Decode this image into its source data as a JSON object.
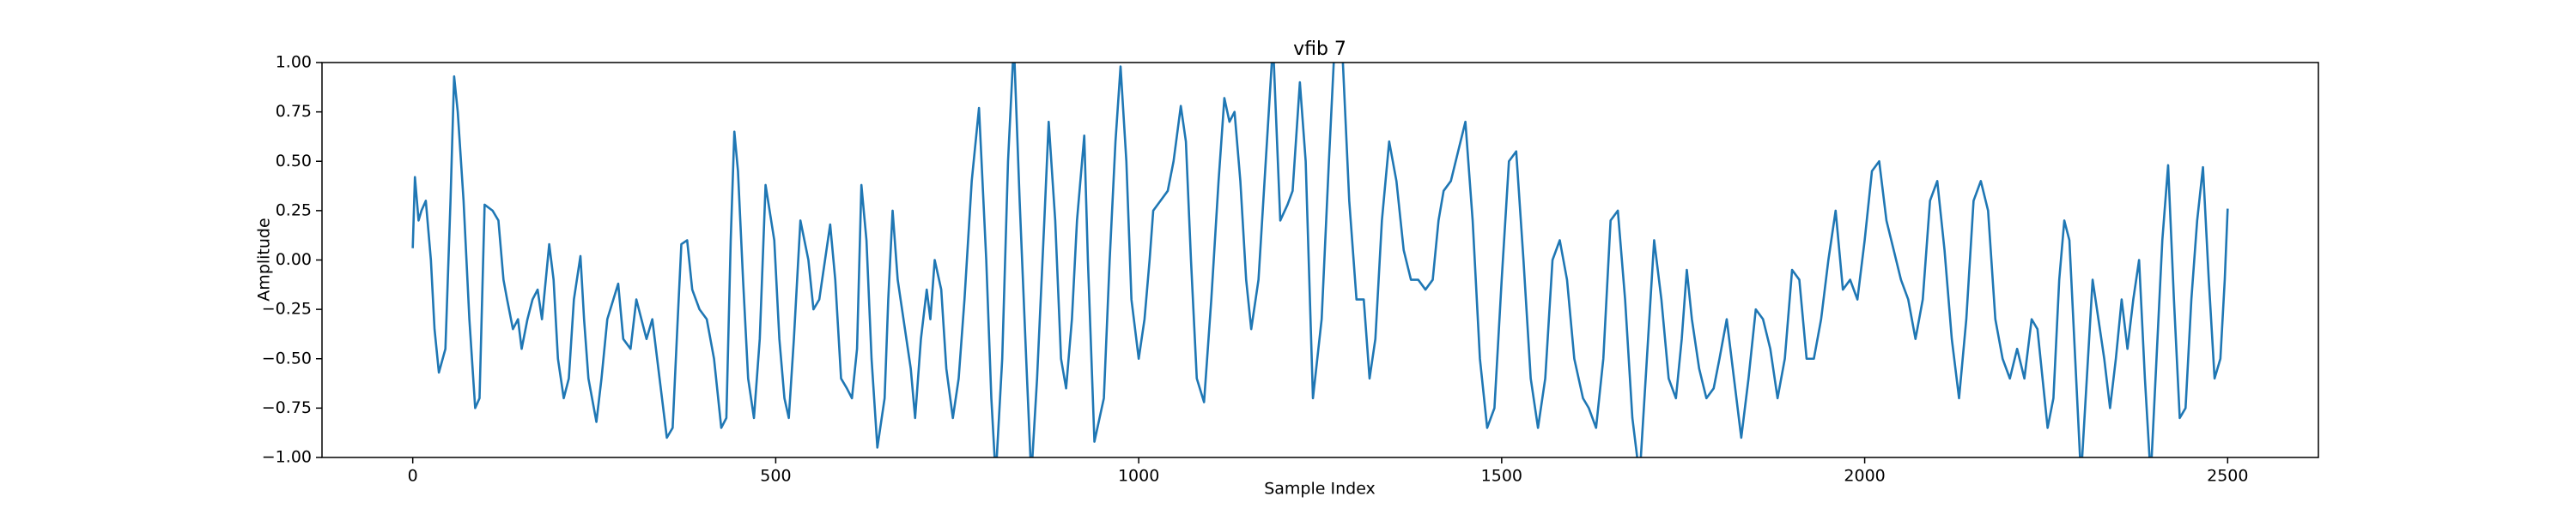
{
  "chart_data": {
    "type": "line",
    "title": "vfib 7",
    "x_label": "Sample Index",
    "y_label": "Amplitude",
    "xlim": [
      -125,
      2625
    ],
    "xticks": [
      0,
      500,
      1000,
      1500,
      2000,
      2500
    ],
    "ylim": [
      -1,
      1
    ],
    "yticks": [
      {
        "value": -1,
        "label": "−1.00"
      },
      {
        "value": -0.75,
        "label": "−0.75"
      },
      {
        "value": -0.5,
        "label": "−0.50"
      },
      {
        "value": -0.25,
        "label": "−0.25"
      },
      {
        "value": 0,
        "label": "0.00"
      },
      {
        "value": 0.25,
        "label": "0.25"
      },
      {
        "value": 0.5,
        "label": "0.50"
      },
      {
        "value": 0.75,
        "label": "0.75"
      },
      {
        "value": 1,
        "label": "1.00"
      }
    ],
    "grid": false,
    "x": [
      0,
      3,
      8,
      12,
      18,
      25,
      30,
      36,
      45,
      52,
      57,
      62,
      70,
      78,
      86,
      92,
      99,
      110,
      118,
      125,
      130,
      138,
      145,
      150,
      158,
      165,
      172,
      178,
      188,
      194,
      200,
      208,
      215,
      222,
      231,
      236,
      242,
      253,
      260,
      268,
      283,
      290,
      300,
      308,
      315,
      322,
      330,
      340,
      350,
      358,
      365,
      370,
      378,
      385,
      395,
      405,
      415,
      425,
      432,
      438,
      443,
      448,
      455,
      462,
      470,
      478,
      486,
      498,
      505,
      512,
      518,
      525,
      534,
      545,
      552,
      560,
      575,
      582,
      590,
      598,
      605,
      612,
      618,
      625,
      632,
      640,
      650,
      655,
      661,
      668,
      680,
      686,
      692,
      700,
      708,
      713,
      719,
      728,
      735,
      744,
      752,
      760,
      770,
      780,
      790,
      797,
      803,
      812,
      820,
      828,
      836,
      845,
      852,
      860,
      870,
      876,
      885,
      893,
      900,
      908,
      915,
      925,
      930,
      939,
      952,
      960,
      968,
      975,
      983,
      990,
      1000,
      1008,
      1015,
      1020,
      1030,
      1040,
      1048,
      1058,
      1065,
      1072,
      1080,
      1090,
      1100,
      1110,
      1118,
      1125,
      1132,
      1140,
      1148,
      1155,
      1165,
      1175,
      1185,
      1195,
      1205,
      1212,
      1222,
      1230,
      1240,
      1252,
      1262,
      1270,
      1280,
      1290,
      1300,
      1310,
      1318,
      1326,
      1335,
      1345,
      1355,
      1365,
      1375,
      1385,
      1395,
      1405,
      1413,
      1420,
      1430,
      1440,
      1450,
      1460,
      1470,
      1480,
      1490,
      1500,
      1510,
      1520,
      1530,
      1540,
      1550,
      1560,
      1570,
      1580,
      1590,
      1600,
      1612,
      1620,
      1630,
      1640,
      1650,
      1660,
      1670,
      1680,
      1690,
      1700,
      1710,
      1720,
      1730,
      1740,
      1748,
      1755,
      1762,
      1772,
      1782,
      1792,
      1800,
      1810,
      1820,
      1830,
      1840,
      1850,
      1860,
      1870,
      1880,
      1890,
      1900,
      1910,
      1920,
      1930,
      1940,
      1950,
      1960,
      1970,
      1980,
      1990,
      2000,
      2010,
      2020,
      2030,
      2040,
      2050,
      2060,
      2070,
      2080,
      2090,
      2100,
      2110,
      2120,
      2130,
      2140,
      2150,
      2160,
      2170,
      2180,
      2190,
      2200,
      2210,
      2220,
      2230,
      2238,
      2245,
      2252,
      2260,
      2268,
      2275,
      2282,
      2290,
      2298,
      2306,
      2314,
      2322,
      2330,
      2338,
      2346,
      2354,
      2362,
      2370,
      2378,
      2386,
      2394,
      2402,
      2410,
      2418,
      2426,
      2434,
      2442,
      2450,
      2458,
      2466,
      2474,
      2482,
      2490,
      2496,
      2500
    ],
    "series": [
      {
        "name": "vfib 7",
        "color": "#1f77b4",
        "values": [
          0.06,
          0.42,
          0.2,
          0.25,
          0.3,
          0,
          -0.35,
          -0.57,
          -0.45,
          0.3,
          0.93,
          0.75,
          0.3,
          -0.3,
          -0.75,
          -0.7,
          0.28,
          0.25,
          0.2,
          -0.1,
          -0.2,
          -0.35,
          -0.3,
          -0.45,
          -0.3,
          -0.2,
          -0.15,
          -0.3,
          0.08,
          -0.1,
          -0.5,
          -0.7,
          -0.6,
          -0.2,
          0.02,
          -0.3,
          -0.6,
          -0.82,
          -0.6,
          -0.3,
          -0.12,
          -0.4,
          -0.45,
          -0.2,
          -0.3,
          -0.4,
          -0.3,
          -0.6,
          -0.9,
          -0.85,
          -0.3,
          0.08,
          0.1,
          -0.15,
          -0.25,
          -0.3,
          -0.5,
          -0.85,
          -0.8,
          0.1,
          0.65,
          0.45,
          -0.1,
          -0.6,
          -0.8,
          -0.4,
          0.38,
          0.1,
          -0.4,
          -0.7,
          -0.8,
          -0.4,
          0.2,
          0,
          -0.25,
          -0.2,
          0.18,
          -0.1,
          -0.6,
          -0.65,
          -0.7,
          -0.45,
          0.38,
          0.1,
          -0.5,
          -0.95,
          -0.7,
          -0.2,
          0.25,
          -0.1,
          -0.4,
          -0.55,
          -0.8,
          -0.4,
          -0.15,
          -0.3,
          0,
          -0.15,
          -0.55,
          -0.8,
          -0.6,
          -0.2,
          0.4,
          0.77,
          0,
          -0.7,
          -1.1,
          -0.5,
          0.5,
          1.1,
          0.3,
          -0.5,
          -1.1,
          -0.6,
          0.2,
          0.7,
          0.2,
          -0.5,
          -0.65,
          -0.3,
          0.2,
          0.63,
          0,
          -0.92,
          -0.7,
          0,
          0.6,
          0.98,
          0.5,
          -0.2,
          -0.5,
          -0.3,
          0,
          0.25,
          0.3,
          0.35,
          0.5,
          0.78,
          0.6,
          0,
          -0.6,
          -0.72,
          -0.2,
          0.4,
          0.82,
          0.7,
          0.75,
          0.4,
          -0.1,
          -0.35,
          -0.1,
          0.5,
          1.1,
          0.2,
          0.28,
          0.35,
          0.9,
          0.5,
          -0.7,
          -0.3,
          0.5,
          1.1,
          1.1,
          0.3,
          -0.2,
          -0.2,
          -0.6,
          -0.4,
          0.2,
          0.6,
          0.4,
          0.05,
          -0.1,
          -0.1,
          -0.15,
          -0.1,
          0.2,
          0.35,
          0.4,
          0.55,
          0.7,
          0.2,
          -0.5,
          -0.85,
          -0.75,
          -0.1,
          0.5,
          0.55,
          0,
          -0.6,
          -0.85,
          -0.6,
          0,
          0.1,
          -0.1,
          -0.5,
          -0.7,
          -0.75,
          -0.85,
          -0.5,
          0.2,
          0.25,
          -0.2,
          -0.8,
          -1.1,
          -0.5,
          0.1,
          -0.2,
          -0.6,
          -0.7,
          -0.4,
          -0.05,
          -0.3,
          -0.55,
          -0.7,
          -0.65,
          -0.5,
          -0.3,
          -0.6,
          -0.9,
          -0.6,
          -0.25,
          -0.3,
          -0.45,
          -0.7,
          -0.5,
          -0.05,
          -0.1,
          -0.5,
          -0.5,
          -0.3,
          0,
          0.25,
          -0.15,
          -0.1,
          -0.2,
          0.1,
          0.45,
          0.5,
          0.2,
          0.05,
          -0.1,
          -0.2,
          -0.4,
          -0.2,
          0.3,
          0.4,
          0.05,
          -0.4,
          -0.7,
          -0.3,
          0.3,
          0.4,
          0.25,
          -0.3,
          -0.5,
          -0.6,
          -0.45,
          -0.6,
          -0.3,
          -0.35,
          -0.6,
          -0.85,
          -0.7,
          -0.1,
          0.2,
          0.1,
          -0.5,
          -1.1,
          -0.6,
          -0.1,
          -0.3,
          -0.5,
          -0.75,
          -0.5,
          -0.2,
          -0.45,
          -0.2,
          0,
          -0.6,
          -1.1,
          -0.5,
          0.1,
          0.48,
          -0.2,
          -0.8,
          -0.75,
          -0.2,
          0.2,
          0.47,
          -0.1,
          -0.6,
          -0.5,
          -0.1,
          0.26
        ]
      }
    ]
  }
}
